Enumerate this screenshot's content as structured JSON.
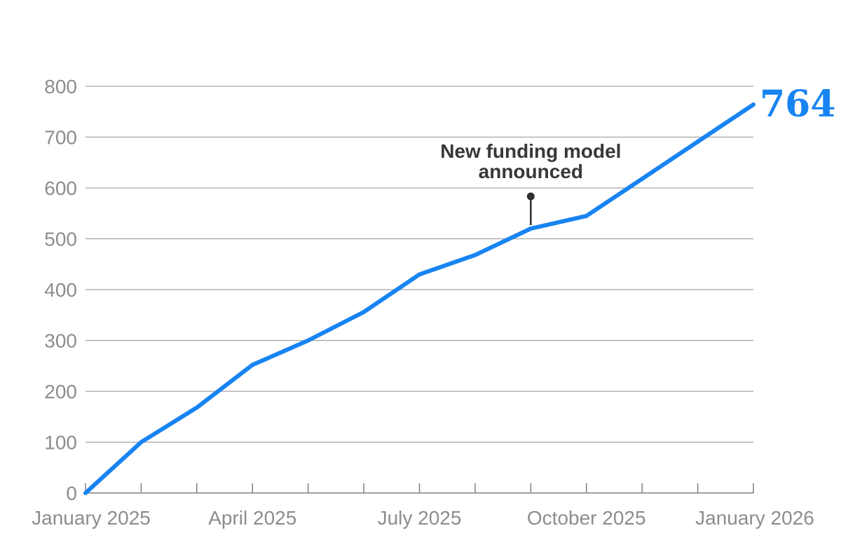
{
  "chart_data": {
    "type": "line",
    "title": "",
    "x": [
      "January 2025",
      "February 2025",
      "March 2025",
      "April 2025",
      "May 2025",
      "June 2025",
      "July 2025",
      "August 2025",
      "September 2025",
      "October 2025",
      "November 2025",
      "December 2025",
      "January 2026"
    ],
    "values": [
      0,
      100,
      168,
      252,
      300,
      356,
      430,
      468,
      520,
      545,
      618,
      691,
      764
    ],
    "ylim": [
      0,
      800
    ],
    "y_ticks": [
      0,
      100,
      200,
      300,
      400,
      500,
      600,
      700,
      800
    ],
    "x_tick_labels": [
      "January 2025",
      "April 2025",
      "July 2025",
      "October 2025",
      "January 2026"
    ],
    "x_labeled_indices": [
      0,
      3,
      6,
      9,
      12
    ],
    "grid": "horizontal",
    "legend": "none",
    "annotation": {
      "text_line1": "New funding model",
      "text_line2": "announced",
      "target_x": "September 2025",
      "target_index": 8,
      "target_value": 520
    },
    "end_label": {
      "value": "764",
      "series_final_value": 764
    },
    "colors": {
      "line": "#1884f2",
      "axis_text": "#8d8d8d",
      "grid": "#a3a3a3",
      "axis": "#808080",
      "annotation_text": "#383838",
      "pin": "#2f2f2f",
      "background": "#ffffff"
    }
  }
}
